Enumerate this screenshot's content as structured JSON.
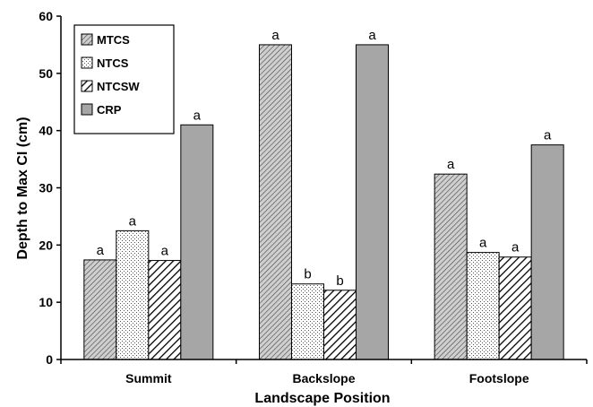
{
  "chart_data": {
    "type": "bar",
    "xlabel": "Landscape Position",
    "ylabel": "Depth to Max CI (cm)",
    "ylim": [
      0,
      60
    ],
    "yticks": [
      0,
      10,
      20,
      30,
      40,
      50,
      60
    ],
    "grid": false,
    "legend_position": "top-left",
    "categories": [
      "Summit",
      "Backslope",
      "Footslope"
    ],
    "series": [
      {
        "name": "MTCS",
        "values": [
          17.4,
          55,
          32.4
        ],
        "labels": [
          "a",
          "a",
          "a"
        ],
        "pattern": "diagonal-dense",
        "color": "#bdbdbd"
      },
      {
        "name": "NTCS",
        "values": [
          22.5,
          13.2,
          18.7
        ],
        "labels": [
          "a",
          "b",
          "a"
        ],
        "pattern": "dots",
        "color": "#ffffff"
      },
      {
        "name": "NTCSW",
        "values": [
          17.3,
          12.1,
          17.9
        ],
        "labels": [
          "a",
          "b",
          "a"
        ],
        "pattern": "diagonal-wide",
        "color": "#ffffff"
      },
      {
        "name": "CRP",
        "values": [
          41,
          55,
          37.5
        ],
        "labels": [
          "a",
          "a",
          "a"
        ],
        "pattern": "solid",
        "color": "#a6a6a6"
      }
    ]
  }
}
